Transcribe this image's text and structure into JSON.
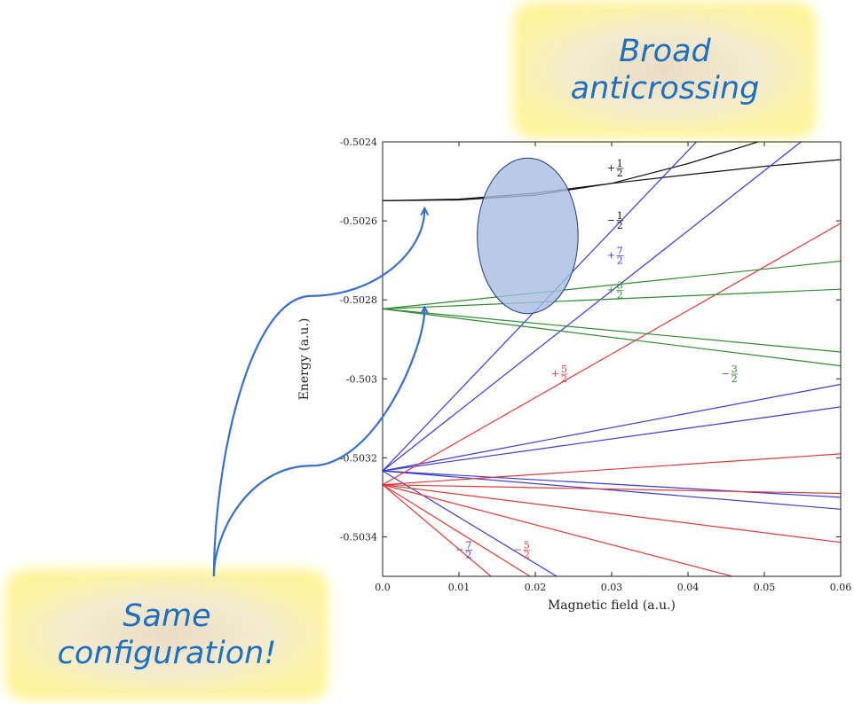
{
  "callouts": {
    "top": "Broad\nanticrossing",
    "bottom": "Same\nconfiguration!"
  },
  "colors": {
    "black": "#111111",
    "blue": "#3a3ad6",
    "red": "#e03b3b",
    "green": "#2e8b2e",
    "annotation": "#3a6fc9",
    "ellipse_fill": "#a8bde0",
    "callout_text": "#1f6fbf"
  },
  "chart_data": {
    "type": "line",
    "xlabel": "Magnetic field (a.u.)",
    "ylabel": "Energy (a.u.)",
    "xlim": [
      0,
      0.06
    ],
    "ylim": [
      -0.5035,
      -0.5024
    ],
    "x_ticks": [
      {
        "value": 0,
        "label": "0.0"
      },
      {
        "value": 0.01,
        "label": "0.01"
      },
      {
        "value": 0.02,
        "label": "0.02"
      },
      {
        "value": 0.03,
        "label": "0.03"
      },
      {
        "value": 0.04,
        "label": "0.04"
      },
      {
        "value": 0.05,
        "label": "0.05"
      },
      {
        "value": 0.06,
        "label": "0.06"
      }
    ],
    "y_ticks": [
      {
        "value": -0.5024,
        "label": "-0.5024"
      },
      {
        "value": -0.5026,
        "label": "-0.5026"
      },
      {
        "value": -0.5028,
        "label": "-0.5028"
      },
      {
        "value": -0.503,
        "label": "-0.503"
      },
      {
        "value": -0.5032,
        "label": "-0.5032"
      },
      {
        "value": -0.5034,
        "label": "-0.5034"
      }
    ],
    "series": [
      {
        "color": "black",
        "points": [
          [
            0,
            -0.502549
          ],
          [
            0.01,
            -0.502547
          ],
          [
            0.02,
            -0.502535
          ],
          [
            0.03,
            -0.502505
          ],
          [
            0.04,
            -0.502455
          ],
          [
            0.05,
            -0.502395
          ],
          [
            0.06,
            -0.50233
          ]
        ]
      },
      {
        "color": "black",
        "points": [
          [
            0,
            -0.502549
          ],
          [
            0.01,
            -0.502545
          ],
          [
            0.02,
            -0.50253
          ],
          [
            0.03,
            -0.502505
          ],
          [
            0.04,
            -0.502483
          ],
          [
            0.05,
            -0.502462
          ],
          [
            0.06,
            -0.502445
          ]
        ]
      },
      {
        "color": "blue",
        "points": [
          [
            0,
            -0.503233
          ],
          [
            0.045,
            -0.502321
          ]
        ]
      },
      {
        "color": "blue",
        "points": [
          [
            0,
            -0.503233
          ],
          [
            0.06,
            -0.502321
          ]
        ]
      },
      {
        "color": "blue",
        "points": [
          [
            0,
            -0.503233
          ],
          [
            0.06,
            -0.503014
          ]
        ]
      },
      {
        "color": "blue",
        "points": [
          [
            0,
            -0.503233
          ],
          [
            0.06,
            -0.503071
          ]
        ]
      },
      {
        "color": "blue",
        "points": [
          [
            0,
            -0.503233
          ],
          [
            0.06,
            -0.5033
          ]
        ]
      },
      {
        "color": "blue",
        "points": [
          [
            0,
            -0.503233
          ],
          [
            0.06,
            -0.50333
          ]
        ]
      },
      {
        "color": "blue",
        "points": [
          [
            0,
            -0.503233
          ],
          [
            0.0228,
            -0.5035
          ]
        ]
      },
      {
        "color": "red",
        "points": [
          [
            0,
            -0.503268
          ],
          [
            0.06,
            -0.502606
          ]
        ]
      },
      {
        "color": "red",
        "points": [
          [
            0,
            -0.503268
          ],
          [
            0.06,
            -0.50319
          ]
        ]
      },
      {
        "color": "red",
        "points": [
          [
            0,
            -0.503268
          ],
          [
            0.06,
            -0.50329
          ]
        ]
      },
      {
        "color": "red",
        "points": [
          [
            0,
            -0.503268
          ],
          [
            0.06,
            -0.503414
          ]
        ]
      },
      {
        "color": "red",
        "points": [
          [
            0,
            -0.503268
          ],
          [
            0.0458,
            -0.5035
          ]
        ]
      },
      {
        "color": "red",
        "points": [
          [
            0,
            -0.503268
          ],
          [
            0.0193,
            -0.5035
          ]
        ]
      },
      {
        "color": "red",
        "points": [
          [
            0,
            -0.503268
          ],
          [
            0.0142,
            -0.5035
          ]
        ]
      },
      {
        "color": "green",
        "points": [
          [
            0,
            -0.502823
          ],
          [
            0.06,
            -0.502702
          ]
        ]
      },
      {
        "color": "green",
        "points": [
          [
            0,
            -0.502823
          ],
          [
            0.06,
            -0.502773
          ]
        ]
      },
      {
        "color": "green",
        "points": [
          [
            0,
            -0.502823
          ],
          [
            0.06,
            -0.502932
          ]
        ]
      },
      {
        "color": "green",
        "points": [
          [
            0,
            -0.502823
          ],
          [
            0.06,
            -0.502967
          ]
        ]
      }
    ],
    "level_labels": [
      {
        "sign": "+",
        "num": "1",
        "den": "2",
        "color": "black",
        "x": 0.0305,
        "y": -0.502465
      },
      {
        "sign": "−",
        "num": "1",
        "den": "2",
        "color": "black",
        "x": 0.0305,
        "y": -0.502597
      },
      {
        "sign": "+",
        "num": "7",
        "den": "2",
        "color": "blue",
        "x": 0.0305,
        "y": -0.502686
      },
      {
        "sign": "+",
        "num": "3",
        "den": "2",
        "color": "green",
        "x": 0.0305,
        "y": -0.502774
      },
      {
        "sign": "+",
        "num": "5",
        "den": "2",
        "color": "red",
        "x": 0.0232,
        "y": -0.502986
      },
      {
        "sign": "−",
        "num": "3",
        "den": "2",
        "color": "green",
        "x": 0.0455,
        "y": -0.502986
      },
      {
        "sign": "−",
        "num": "7",
        "den": "2",
        "color": "blue",
        "x": 0.0107,
        "y": -0.503432
      },
      {
        "sign": "−",
        "num": "5",
        "den": "2",
        "color": "red",
        "x": 0.0183,
        "y": -0.503432
      }
    ],
    "highlight_ellipse": {
      "cx": 0.019,
      "cy": -0.502638,
      "rx": 0.0066,
      "ry": -0.000197
    },
    "annotation_arrows": [
      {
        "from": [
          -0.0221,
          -0.5035
        ],
        "via": [
          -0.0093,
          -0.50279
        ],
        "to": [
          0.0055,
          -0.50257
        ]
      },
      {
        "from": [
          -0.0221,
          -0.5035
        ],
        "via": [
          -0.0093,
          -0.50322
        ],
        "to": [
          0.0055,
          -0.50282
        ]
      }
    ]
  }
}
